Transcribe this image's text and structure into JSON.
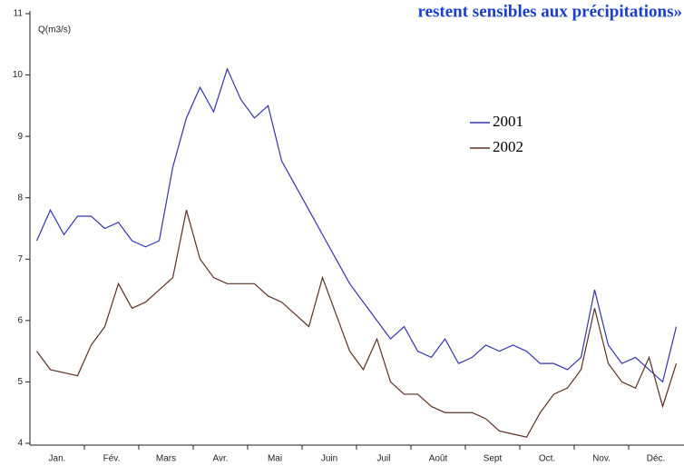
{
  "chart_data": {
    "type": "line",
    "title": "restent sensibles aux précipitations»",
    "y_label": "Q(m3/s)",
    "categories": [
      null,
      "Jan.",
      null,
      null,
      null,
      "Fév.",
      null,
      null,
      null,
      "Mars",
      null,
      null,
      null,
      "Avr.",
      null,
      null,
      null,
      "Mai",
      null,
      null,
      null,
      "Juin",
      null,
      null,
      null,
      "Juil",
      null,
      null,
      null,
      "Août",
      null,
      null,
      null,
      "Sept",
      null,
      null,
      null,
      "Oct.",
      null,
      null,
      null,
      "Nov.",
      null,
      null,
      null,
      "Déc.",
      null,
      null
    ],
    "series": [
      {
        "name": "2001",
        "color": "#3434b0",
        "values": [
          7.3,
          7.8,
          7.4,
          7.7,
          7.7,
          7.5,
          7.6,
          7.3,
          7.2,
          7.3,
          8.5,
          9.3,
          9.8,
          9.4,
          10.1,
          9.6,
          9.3,
          9.5,
          8.6,
          8.2,
          7.8,
          7.4,
          7.0,
          6.6,
          6.3,
          6.0,
          5.7,
          5.9,
          5.5,
          5.4,
          5.7,
          5.3,
          5.4,
          5.6,
          5.5,
          5.6,
          5.5,
          5.3,
          5.3,
          5.2,
          5.4,
          6.5,
          5.6,
          5.3,
          5.4,
          5.2,
          5.0,
          5.9
        ]
      },
      {
        "name": "2002",
        "color": "#5a3020",
        "values": [
          5.5,
          5.2,
          5.15,
          5.1,
          5.6,
          5.9,
          6.6,
          6.2,
          6.3,
          6.5,
          6.7,
          7.8,
          7.0,
          6.7,
          6.6,
          6.6,
          6.6,
          6.4,
          6.3,
          6.1,
          5.9,
          6.7,
          6.1,
          5.5,
          5.2,
          5.7,
          5.0,
          4.8,
          4.8,
          4.6,
          4.5,
          4.5,
          4.5,
          4.4,
          4.2,
          4.15,
          4.1,
          4.5,
          4.8,
          4.9,
          5.2,
          6.2,
          5.3,
          5.0,
          4.9,
          5.4,
          4.6,
          5.3
        ]
      }
    ],
    "ylim": [
      4,
      11
    ],
    "yticks": [
      4,
      5,
      6,
      7,
      8,
      9,
      10,
      11
    ]
  }
}
